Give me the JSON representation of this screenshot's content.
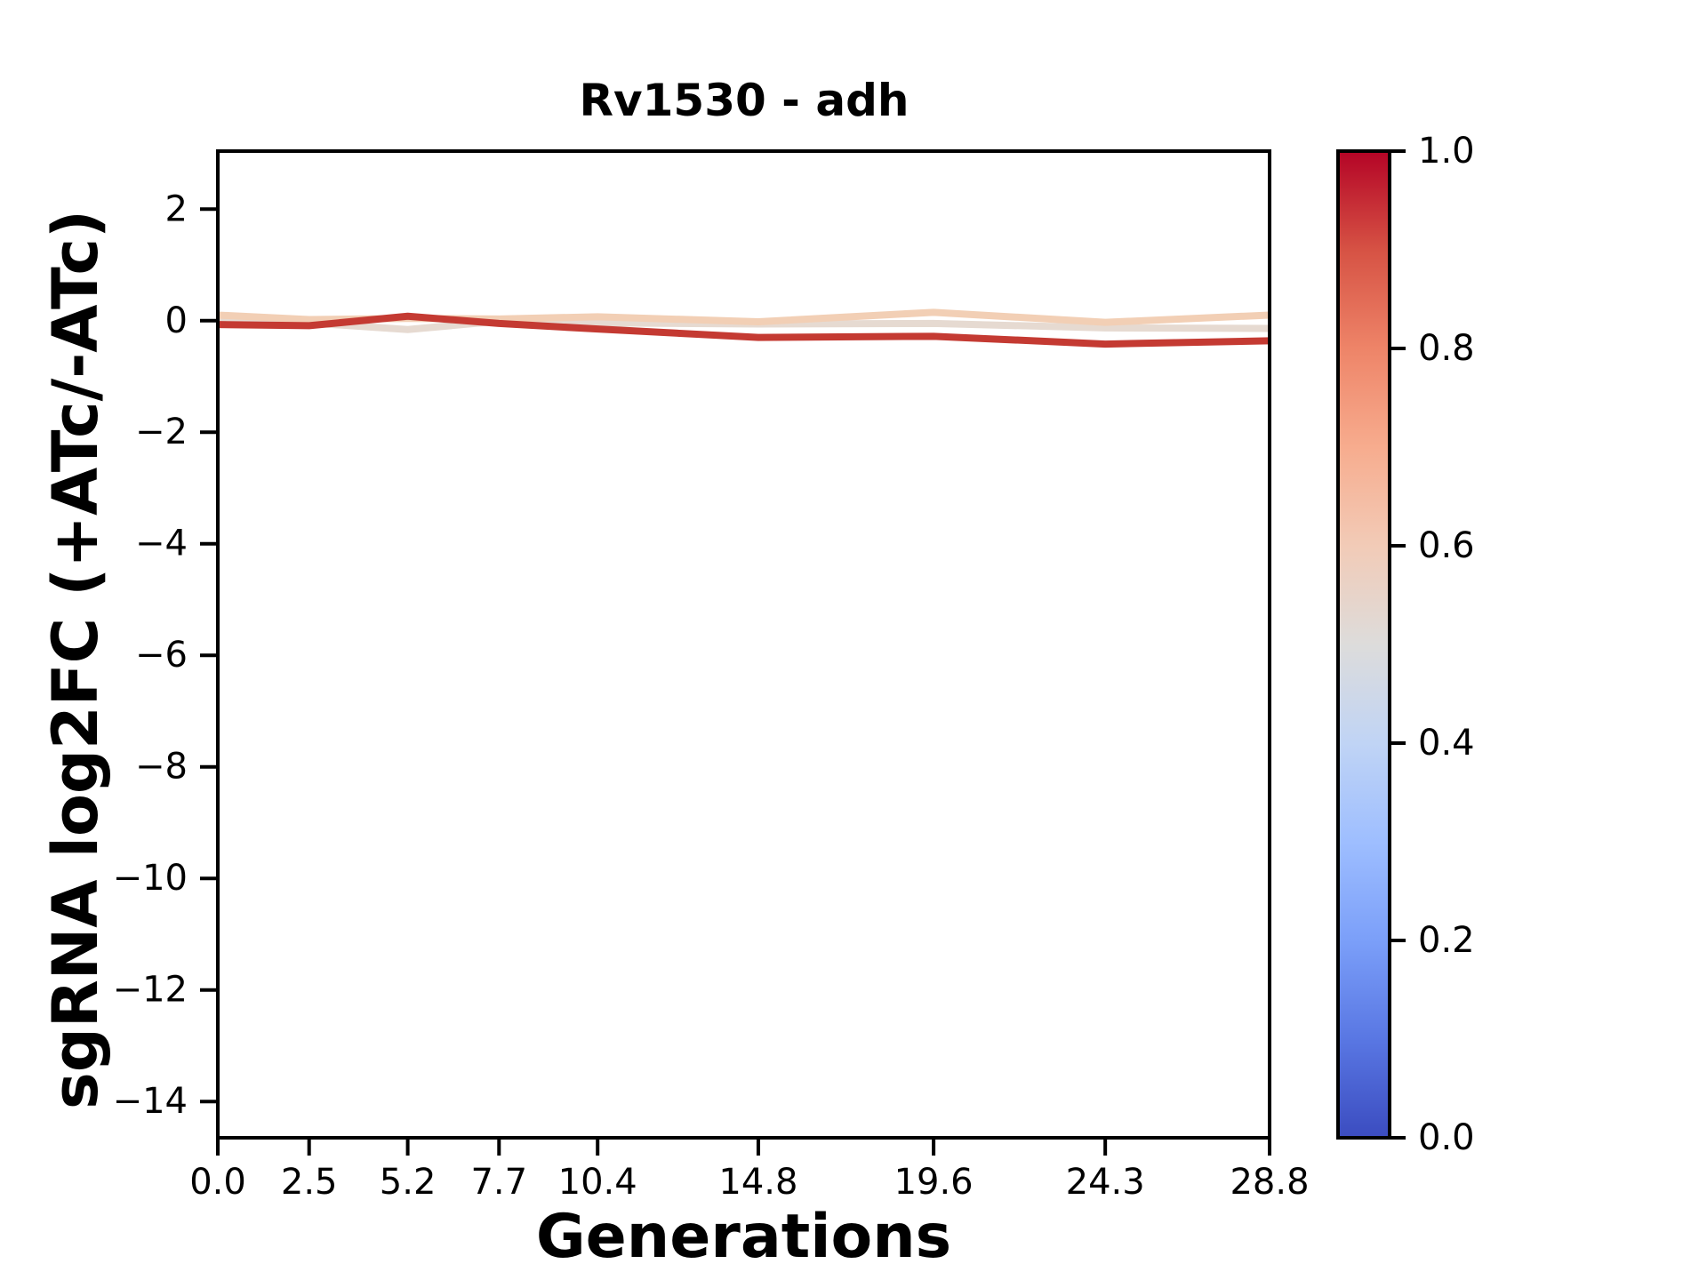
{
  "figure": {
    "title": "Rv1530 - adh",
    "xlabel": "Generations",
    "ylabel": "sgRNA log2FC (+ATc/-ATc)",
    "background_color": "#ffffff",
    "spine_color": "#000000"
  },
  "chart_data": {
    "type": "line",
    "title": "Rv1530 - adh",
    "xlabel": "Generations",
    "ylabel": "sgRNA log2FC (+ATc/-ATc)",
    "x": [
      0.0,
      2.5,
      5.2,
      7.7,
      10.4,
      14.8,
      19.6,
      24.3,
      28.8
    ],
    "x_tick_labels": [
      "0.0",
      "2.5",
      "5.2",
      "7.7",
      "10.4",
      "14.8",
      "19.6",
      "24.3",
      "28.8"
    ],
    "y_tick_values": [
      2,
      0,
      -2,
      -4,
      -6,
      -8,
      -10,
      -12,
      -14
    ],
    "y_tick_labels": [
      "2",
      "0",
      "−2",
      "−4",
      "−6",
      "−8",
      "−10",
      "−12",
      "−14"
    ],
    "xlim": [
      0,
      28.8
    ],
    "ylim": [
      -14.65,
      3.04
    ],
    "grid": false,
    "legend": "none",
    "series": [
      {
        "name": "sgRNA-line-beige",
        "color": "#e6dad1",
        "linewidth": 8,
        "values": [
          0.02,
          -0.04,
          -0.16,
          -0.01,
          -0.04,
          -0.06,
          -0.05,
          -0.13,
          -0.14
        ]
      },
      {
        "name": "sgRNA-line-peach",
        "color": "#f2cfb5",
        "linewidth": 8,
        "values": [
          0.1,
          0.02,
          0.04,
          0.03,
          0.07,
          -0.02,
          0.15,
          -0.03,
          0.1
        ]
      },
      {
        "name": "sgRNA-line-dark-red",
        "color": "#c43a32",
        "linewidth": 8,
        "values": [
          -0.07,
          -0.09,
          0.08,
          -0.05,
          -0.15,
          -0.3,
          -0.28,
          -0.42,
          -0.36
        ]
      }
    ],
    "colorbar": {
      "colormap": "coolwarm",
      "tick_labels": [
        "1.0",
        "0.8",
        "0.6",
        "0.4",
        "0.2",
        "0.0"
      ],
      "tick_values": [
        1.0,
        0.8,
        0.6,
        0.4,
        0.2,
        0.0
      ],
      "gradient_stops": [
        {
          "t": 0.0,
          "color": "#3b4cc0"
        },
        {
          "t": 0.1,
          "color": "#5977e3"
        },
        {
          "t": 0.2,
          "color": "#7b9ff9"
        },
        {
          "t": 0.3,
          "color": "#9ebeff"
        },
        {
          "t": 0.4,
          "color": "#c0d4f5"
        },
        {
          "t": 0.5,
          "color": "#dddcdb"
        },
        {
          "t": 0.6,
          "color": "#f2cbb7"
        },
        {
          "t": 0.7,
          "color": "#f7ac8e"
        },
        {
          "t": 0.8,
          "color": "#ee8468"
        },
        {
          "t": 0.9,
          "color": "#d65244"
        },
        {
          "t": 1.0,
          "color": "#b40426"
        }
      ]
    }
  }
}
